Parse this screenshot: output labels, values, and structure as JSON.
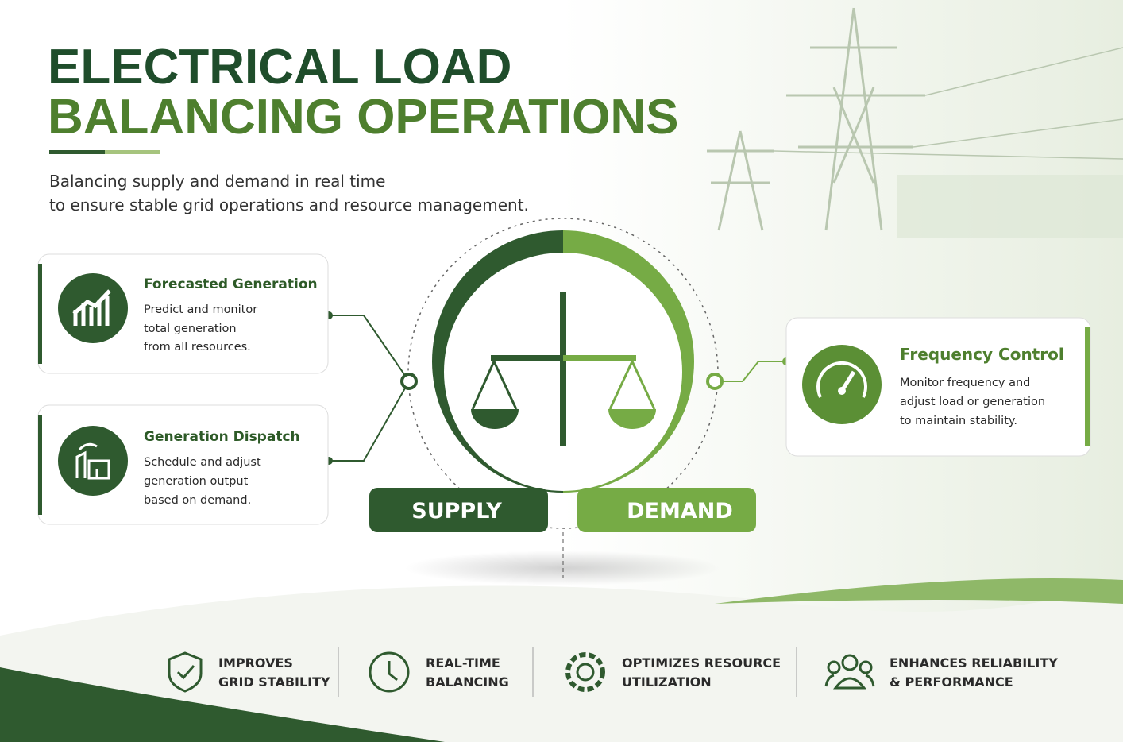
{
  "header": {
    "title_lines": [
      "ELECTRICAL LOAD",
      "BALANCING OPERATIONS"
    ],
    "subtitle_lines": [
      "Balancing supply and demand in real time",
      "to ensure stable grid operations and resource management."
    ]
  },
  "cards": [
    {
      "title": "Forecasted Generation",
      "lines": [
        "Predict and monitor",
        "total generation",
        "from all resources."
      ]
    },
    {
      "title": "Generation Dispatch",
      "lines": [
        "Schedule and adjust",
        "generation output",
        "based on demand."
      ]
    },
    {
      "title": "Frequency Control",
      "lines": [
        "Monitor frequency and",
        "adjust load or generation",
        "to maintain stability."
      ]
    }
  ],
  "balance": {
    "left_label": "SUPPLY",
    "right_label": "DEMAND"
  },
  "benefits": [
    {
      "lines": [
        "IMPROVES",
        "GRID STABILITY"
      ]
    },
    {
      "lines": [
        "REAL-TIME",
        "BALANCING"
      ]
    },
    {
      "lines": [
        "OPTIMIZES RESOURCE",
        "UTILIZATION"
      ]
    },
    {
      "lines": [
        "ENHANCES RELIABILITY",
        "& PERFORMANCE"
      ]
    }
  ]
}
